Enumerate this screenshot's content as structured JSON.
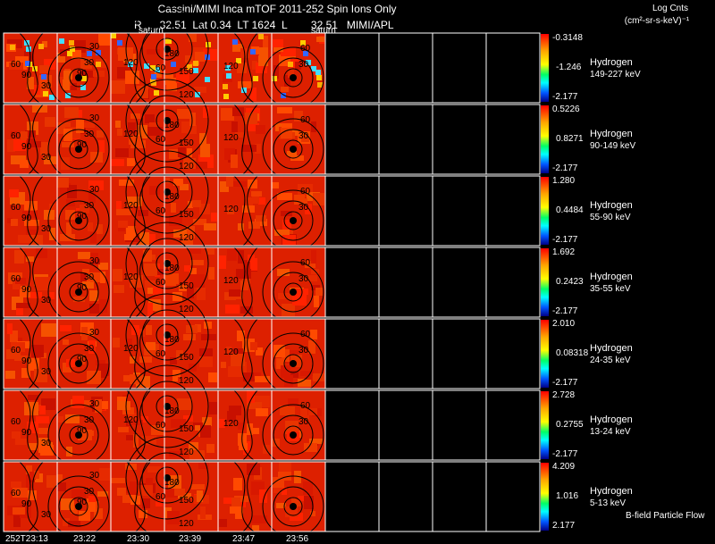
{
  "header": {
    "line1": "Cassini/MIMI Inca mTOF  2011-252   Spin   Ions Only",
    "line2": "R      32.51  Lat 0.34  LT 1624  L        32.51   MIMI/APL",
    "units_title": "Log Cnts",
    "units": "(cm²-sr-s-keV)⁻¹"
  },
  "panel_labels": {
    "saturn": "saturn"
  },
  "footer": {
    "bfield": "B-field Particle Flow"
  },
  "chart_data": {
    "type": "heatmap",
    "title": "Cassini/MIMI Inca mTOF 2011-252 Spin Ions Only",
    "time_labels": [
      "252T23:13",
      "23:22",
      "23:30",
      "23:39",
      "23:47",
      "23:56"
    ],
    "contour_labels": [
      "30",
      "60",
      "90",
      "120",
      "150",
      "180"
    ],
    "colorscale": [
      "#ff0000",
      "#ffa500",
      "#ffff00",
      "#00ff66",
      "#00ffff",
      "#0055ff",
      "#000088"
    ],
    "rows": [
      {
        "species": "Hydrogen",
        "energy": "149-227 keV",
        "max": "-0.3148",
        "mid": "-1.246",
        "min": "-2.177"
      },
      {
        "species": "Hydrogen",
        "energy": "90-149 keV",
        "max": "0.5226",
        "mid": "0.8271",
        "min": "-2.177"
      },
      {
        "species": "Hydrogen",
        "energy": "55-90 keV",
        "max": "1.280",
        "mid": "0.4484",
        "min": "-2.177"
      },
      {
        "species": "Hydrogen",
        "energy": "35-55 keV",
        "max": "1.692",
        "mid": "0.2423",
        "min": "-2.177"
      },
      {
        "species": "Hydrogen",
        "energy": "24-35 keV",
        "max": "2.010",
        "mid": "0.08318",
        "min": "-2.177"
      },
      {
        "species": "Hydrogen",
        "energy": "13-24 keV",
        "max": "2.728",
        "mid": "0.2755",
        "min": "-2.177"
      },
      {
        "species": "Hydrogen",
        "energy": "5-13 keV",
        "max": "4.209",
        "mid": "1.016",
        "min": "2.177"
      }
    ]
  }
}
